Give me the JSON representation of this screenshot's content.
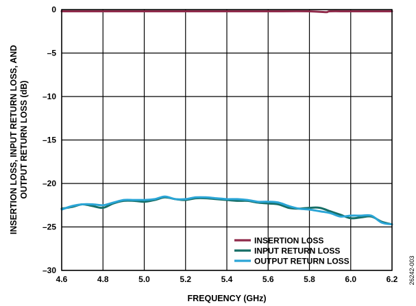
{
  "figure_id": "26242-003",
  "colors": {
    "insertion_loss": "#8f2a4a",
    "input_return_loss": "#166e66",
    "output_return_loss": "#2aa5d6",
    "grid": "#000000",
    "background": "#ffffff"
  },
  "chart_data": {
    "type": "line",
    "xlabel": "FREQUENCY (GHz)",
    "ylabel_lines": [
      "INSERTION LOSS, INPUT  RETURN LOSS, AND",
      "OUTPUT RETURN LOSS (dB)"
    ],
    "xlim": [
      4.6,
      6.2
    ],
    "ylim": [
      -30,
      0
    ],
    "x_ticks": [
      "4.6",
      "4.8",
      "5.0",
      "5.2",
      "5.4",
      "5.6",
      "5.8",
      "6.0",
      "6.2"
    ],
    "y_ticks": [
      "0",
      "–5",
      "–10",
      "–15",
      "–20",
      "–25",
      "–30"
    ],
    "x_tick_values": [
      4.6,
      4.8,
      5.0,
      5.2,
      5.4,
      5.6,
      5.8,
      6.0,
      6.2
    ],
    "y_tick_values": [
      0,
      -5,
      -10,
      -15,
      -20,
      -25,
      -30
    ],
    "grid": true,
    "legend_position": "bottom-right",
    "series": [
      {
        "name": "INSERTION LOSS",
        "color_key": "insertion_loss",
        "x": [
          4.6,
          4.8,
          5.0,
          5.2,
          5.4,
          5.6,
          5.8,
          5.88,
          5.9,
          6.0,
          6.2
        ],
        "y": [
          -0.2,
          -0.2,
          -0.2,
          -0.2,
          -0.2,
          -0.2,
          -0.2,
          -0.3,
          -0.2,
          -0.2,
          -0.2
        ]
      },
      {
        "name": "INPUT RETURN LOSS",
        "color_key": "input_return_loss",
        "x": [
          4.6,
          4.65,
          4.7,
          4.75,
          4.8,
          4.85,
          4.9,
          4.95,
          5.0,
          5.05,
          5.1,
          5.15,
          5.2,
          5.25,
          5.3,
          5.35,
          5.4,
          5.45,
          5.5,
          5.55,
          5.6,
          5.65,
          5.7,
          5.75,
          5.8,
          5.85,
          5.9,
          5.95,
          6.0,
          6.05,
          6.1,
          6.15,
          6.2
        ],
        "y": [
          -22.9,
          -22.7,
          -22.4,
          -22.6,
          -22.8,
          -22.3,
          -22.0,
          -22.0,
          -22.1,
          -21.9,
          -21.6,
          -21.8,
          -21.9,
          -21.7,
          -21.7,
          -21.8,
          -21.9,
          -22.0,
          -22.0,
          -22.2,
          -22.3,
          -22.4,
          -22.8,
          -22.9,
          -22.8,
          -22.8,
          -23.2,
          -23.6,
          -24.0,
          -23.9,
          -23.8,
          -24.4,
          -24.7
        ]
      },
      {
        "name": "OUTPUT RETURN LOSS",
        "color_key": "output_return_loss",
        "x": [
          4.6,
          4.65,
          4.7,
          4.75,
          4.8,
          4.85,
          4.9,
          4.95,
          5.0,
          5.05,
          5.1,
          5.15,
          5.2,
          5.25,
          5.3,
          5.35,
          5.4,
          5.45,
          5.5,
          5.55,
          5.6,
          5.65,
          5.7,
          5.75,
          5.8,
          5.85,
          5.9,
          5.95,
          6.0,
          6.05,
          6.1,
          6.15,
          6.2
        ],
        "y": [
          -23.0,
          -22.6,
          -22.4,
          -22.4,
          -22.5,
          -22.2,
          -21.9,
          -21.9,
          -21.9,
          -21.8,
          -21.5,
          -21.8,
          -21.8,
          -21.6,
          -21.6,
          -21.7,
          -21.8,
          -21.8,
          -21.9,
          -22.1,
          -22.1,
          -22.2,
          -22.6,
          -22.9,
          -23.0,
          -23.2,
          -23.4,
          -23.8,
          -23.7,
          -23.7,
          -23.7,
          -24.5,
          -24.7
        ]
      }
    ]
  }
}
